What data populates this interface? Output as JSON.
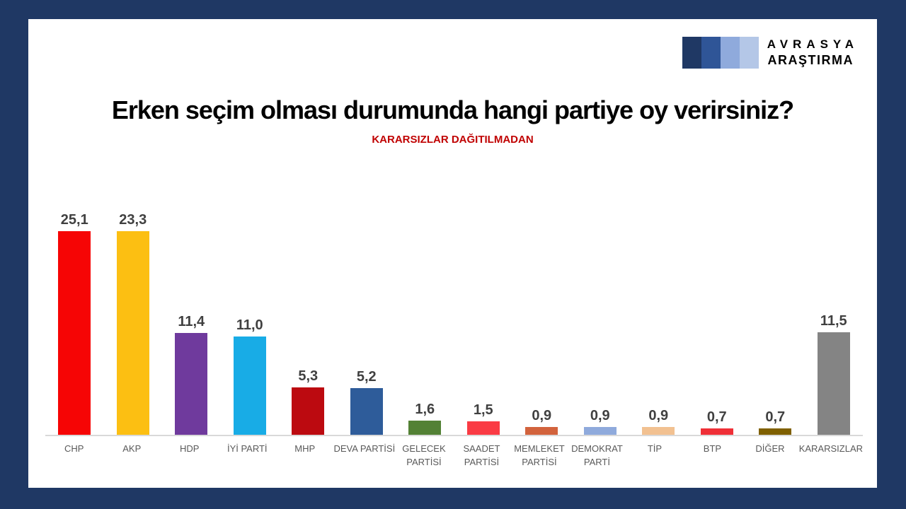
{
  "page": {
    "background_color": "#1F3864",
    "card_color": "#FFFFFF"
  },
  "logo": {
    "line1": "AVRASYA",
    "line2": "ARAŞTIRMA",
    "square_colors": [
      "#1F3864",
      "#2F5597",
      "#8FAADC",
      "#B4C7E7"
    ]
  },
  "chart_data": {
    "type": "bar",
    "title": "Erken seçim olması durumunda hangi partiye oy verirsiniz?",
    "subtitle": "KARARSIZLAR DAĞITILMADAN",
    "subtitle_color": "#C00000",
    "categories": [
      "CHP",
      "AKP",
      "HDP",
      "İYİ PARTİ",
      "MHP",
      "DEVA PARTİSİ",
      "GELECEK PARTİSİ",
      "SAADET PARTİSİ",
      "MEMLEKET PARTİSİ",
      "DEMOKRAT PARTİ",
      "TİP",
      "BTP",
      "DİĞER",
      "KARARSIZLAR"
    ],
    "category_lines": [
      [
        "CHP"
      ],
      [
        "AKP"
      ],
      [
        "HDP"
      ],
      [
        "İYİ PARTİ"
      ],
      [
        "MHP"
      ],
      [
        "DEVA PARTİSİ"
      ],
      [
        "GELECEK",
        "PARTİSİ"
      ],
      [
        "SAADET",
        "PARTİSİ"
      ],
      [
        "MEMLEKET",
        "PARTİSİ"
      ],
      [
        "DEMOKRAT",
        "PARTİ"
      ],
      [
        "TİP"
      ],
      [
        "BTP"
      ],
      [
        "DİĞER"
      ],
      [
        "KARARSIZLAR"
      ]
    ],
    "values": [
      25.1,
      23.3,
      11.4,
      11.0,
      5.3,
      5.2,
      1.6,
      1.5,
      0.9,
      0.9,
      0.9,
      0.7,
      0.7,
      11.5
    ],
    "value_labels": [
      "25,1",
      "23,3",
      "11,4",
      "11,0",
      "5,3",
      "5,2",
      "1,6",
      "1,5",
      "0,9",
      "0,9",
      "0,9",
      "0,7",
      "0,7",
      "11,5"
    ],
    "bar_colors": [
      "#F60505",
      "#FCBF12",
      "#6F3A9D",
      "#18ACE6",
      "#BC0A10",
      "#2E5C9A",
      "#538135",
      "#FA3B44",
      "#D2633D",
      "#8FAADC",
      "#F2C191",
      "#EF2F37",
      "#7F6000",
      "#848484"
    ],
    "ylim": [
      0,
      26.5
    ],
    "grid": false,
    "legend_position": "none",
    "axis_line_color": "#D9D9D9",
    "value_label_color": "#404040",
    "category_label_color": "#595959"
  }
}
